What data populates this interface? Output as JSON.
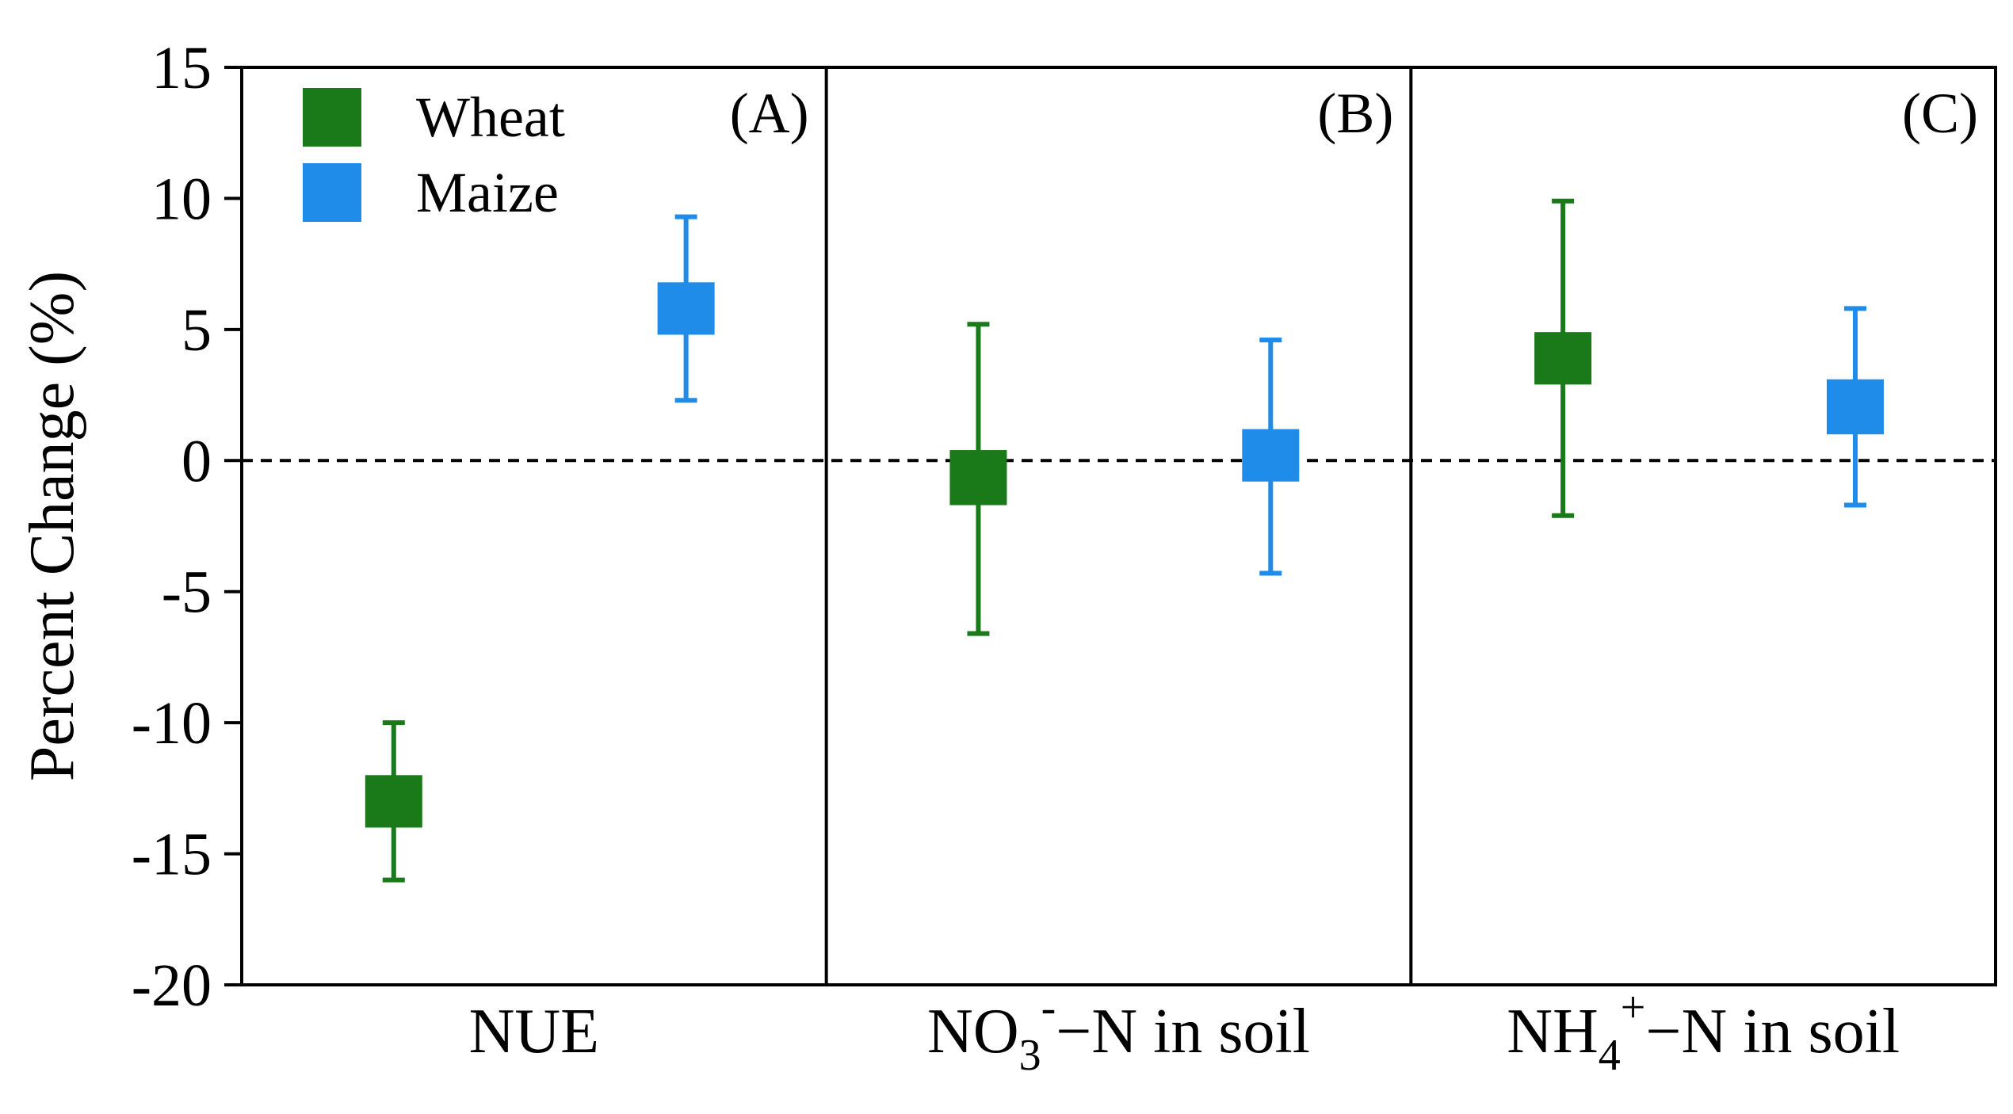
{
  "chart_data": {
    "type": "scatter",
    "ylabel": "Percent Change (%)",
    "ylim": [
      -20,
      15
    ],
    "yticks": [
      15,
      10,
      5,
      0,
      -5,
      -10,
      -15,
      -20
    ],
    "reference_line": {
      "y": 0,
      "style": "dashed"
    },
    "legend": {
      "placement": "top-left",
      "entries": [
        {
          "name": "Wheat",
          "color": "#1a7a1a"
        },
        {
          "name": "Maize",
          "color": "#1e8ce8"
        }
      ]
    },
    "panels": [
      {
        "label": "(A)",
        "category": "NUE",
        "points": [
          {
            "series": "Wheat",
            "value": -13.0,
            "ci_low": -16.0,
            "ci_high": -10.0,
            "box_low": -14.0,
            "box_high": -12.0
          },
          {
            "series": "Maize",
            "value": 5.8,
            "ci_low": 2.3,
            "ci_high": 9.3,
            "box_low": 4.8,
            "box_high": 6.8
          }
        ]
      },
      {
        "label": "(B)",
        "category": "NO3⁻−N in soil",
        "category_parts": [
          "NO",
          "3",
          "-",
          "−N in soil"
        ],
        "points": [
          {
            "series": "Wheat",
            "value": -0.6,
            "ci_low": -6.6,
            "ci_high": 5.2,
            "box_low": -1.7,
            "box_high": 0.4
          },
          {
            "series": "Maize",
            "value": 0.2,
            "ci_low": -4.3,
            "ci_high": 4.6,
            "box_low": -0.8,
            "box_high": 1.2
          }
        ]
      },
      {
        "label": "(C)",
        "category": "NH4⁺−N in soil",
        "category_parts": [
          "NH",
          "4",
          "+",
          "−N in soil"
        ],
        "points": [
          {
            "series": "Wheat",
            "value": 3.9,
            "ci_low": -2.1,
            "ci_high": 9.9,
            "box_low": 2.9,
            "box_high": 4.9
          },
          {
            "series": "Maize",
            "value": 2.1,
            "ci_low": -1.7,
            "ci_high": 5.8,
            "box_low": 1.0,
            "box_high": 3.1
          }
        ]
      }
    ]
  }
}
